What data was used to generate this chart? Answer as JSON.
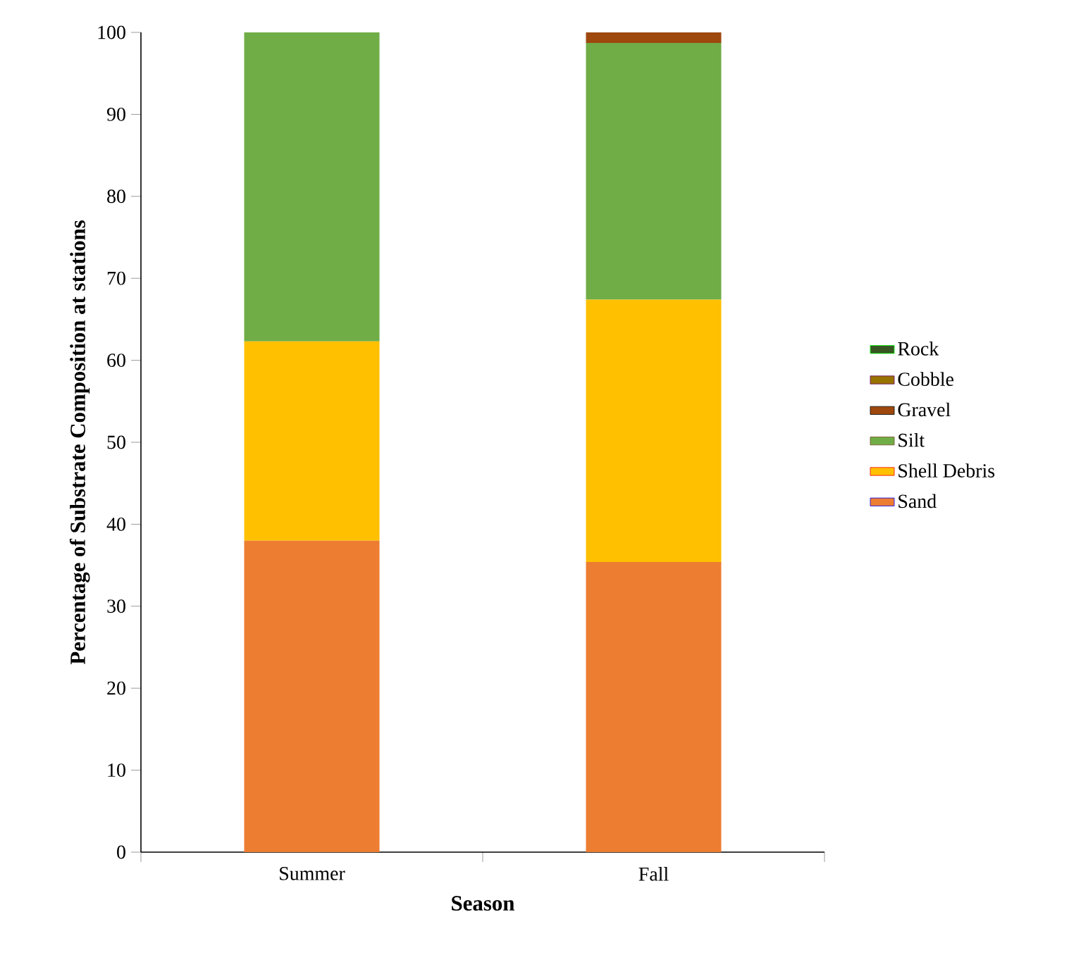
{
  "chart_data": {
    "type": "bar",
    "stacked": true,
    "xlabel": "Season",
    "ylabel": "Percentage of Substrate Composition at stations",
    "categories": [
      "Summer",
      "Fall"
    ],
    "series": [
      {
        "name": "Sand",
        "color": "#ed7d31",
        "values": [
          38.0,
          35.4
        ]
      },
      {
        "name": "Shell Debris",
        "color": "#ffc000",
        "values": [
          24.3,
          32.0
        ]
      },
      {
        "name": "Silt",
        "color": "#70ad47",
        "values": [
          37.7,
          31.3
        ]
      },
      {
        "name": "Gravel",
        "color": "#9e480e",
        "values": [
          0,
          1.3
        ]
      },
      {
        "name": "Cobble",
        "color": "#997300",
        "values": [
          0,
          0
        ]
      },
      {
        "name": "Rock",
        "color": "#375623",
        "values": [
          0,
          0
        ]
      }
    ],
    "ylim": [
      0,
      100
    ],
    "yticks": [
      0,
      10,
      20,
      30,
      40,
      50,
      60,
      70,
      80,
      90,
      100
    ],
    "grid": false,
    "legend": "right"
  }
}
